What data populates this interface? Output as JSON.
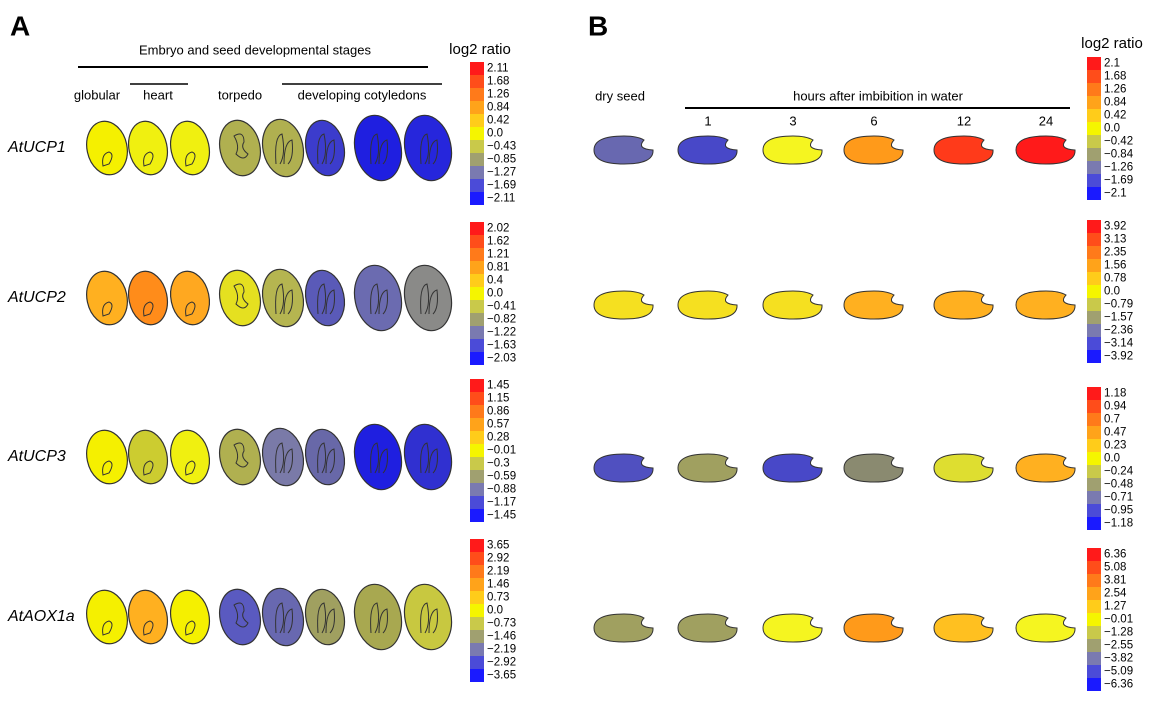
{
  "scale_colors": [
    "#ff1a1a",
    "#ff4d1a",
    "#ff7a1a",
    "#ffa31a",
    "#ffcc1a",
    "#f5f500",
    "#c9c94a",
    "#a0a070",
    "#7a7ab0",
    "#4b4bd8",
    "#1a1aff"
  ],
  "panel_a": {
    "label": "A",
    "header": "Embryo and seed developmental stages",
    "stages": [
      "globular",
      "heart",
      "torpedo",
      "developing cotyledons"
    ],
    "scale_title": "log2 ratio",
    "rows": [
      {
        "gene": "AtUCP1",
        "colors": [
          "#f5f000",
          "#f0f010",
          "#f0f010",
          "#b0b050",
          "#b0b050",
          "#3c3ccc",
          "#1f1fe0",
          "#2626dc"
        ],
        "scale": [
          "2.11",
          "1.68",
          "1.26",
          "0.84",
          "0.42",
          "0.0",
          "−0.43",
          "−0.85",
          "−1.27",
          "−1.69",
          "−2.11"
        ]
      },
      {
        "gene": "AtUCP2",
        "colors": [
          "#ffb020",
          "#ff8c1a",
          "#ffa820",
          "#e5e020",
          "#b5b550",
          "#5a5ab8",
          "#6b6bb0",
          "#8a8a88"
        ],
        "scale": [
          "2.02",
          "1.62",
          "1.21",
          "0.81",
          "0.4",
          "0.0",
          "−0.41",
          "−0.82",
          "−1.22",
          "−1.63",
          "−2.03"
        ]
      },
      {
        "gene": "AtUCP3",
        "colors": [
          "#f5f000",
          "#cccc30",
          "#f0f010",
          "#b0b050",
          "#7a7aa8",
          "#6868a8",
          "#1f1fe0",
          "#3030d0"
        ],
        "scale": [
          "1.45",
          "1.15",
          "0.86",
          "0.57",
          "0.28",
          "−0.01",
          "−0.3",
          "−0.59",
          "−0.88",
          "−1.17",
          "−1.45"
        ]
      },
      {
        "gene": "AtAOX1a",
        "colors": [
          "#f5f000",
          "#ffb020",
          "#f5f000",
          "#5a5ac0",
          "#6868b0",
          "#a0a060",
          "#a8a850",
          "#c8c840"
        ],
        "scale": [
          "3.65",
          "2.92",
          "2.19",
          "1.46",
          "0.73",
          "0.0",
          "−0.73",
          "−1.46",
          "−2.19",
          "−2.92",
          "−3.65"
        ]
      }
    ]
  },
  "panel_b": {
    "label": "B",
    "dry_seed": "dry seed",
    "header": "hours after imbibition in water",
    "hours": [
      "1",
      "3",
      "6",
      "12",
      "24"
    ],
    "scale_title": "log2 ratio",
    "rows": [
      {
        "colors": [
          "#6868b0",
          "#4848c8",
          "#f5f520",
          "#ff9a1a",
          "#ff3a1a",
          "#ff1a1a"
        ],
        "scale": [
          "2.1",
          "1.68",
          "1.26",
          "0.84",
          "0.42",
          "0.0",
          "−0.42",
          "−0.84",
          "−1.26",
          "−1.69",
          "−2.1"
        ]
      },
      {
        "colors": [
          "#f5e020",
          "#f5e020",
          "#f5e020",
          "#ffb020",
          "#ffb020",
          "#ffb020"
        ],
        "scale": [
          "3.92",
          "3.13",
          "2.35",
          "1.56",
          "0.78",
          "0.0",
          "−0.79",
          "−1.57",
          "−2.36",
          "−3.14",
          "−3.92"
        ]
      },
      {
        "colors": [
          "#5050c0",
          "#a0a060",
          "#4848c8",
          "#8a8a70",
          "#dede30",
          "#ffb020"
        ],
        "scale": [
          "1.18",
          "0.94",
          "0.7",
          "0.47",
          "0.23",
          "0.0",
          "−0.24",
          "−0.48",
          "−0.71",
          "−0.95",
          "−1.18"
        ]
      },
      {
        "colors": [
          "#a0a060",
          "#a0a060",
          "#f5f520",
          "#ff9a1a",
          "#ffc020",
          "#f5f520"
        ],
        "scale": [
          "6.36",
          "5.08",
          "3.81",
          "2.54",
          "1.27",
          "−0.01",
          "−1.28",
          "−2.55",
          "−3.82",
          "−5.09",
          "−6.36"
        ]
      }
    ]
  }
}
